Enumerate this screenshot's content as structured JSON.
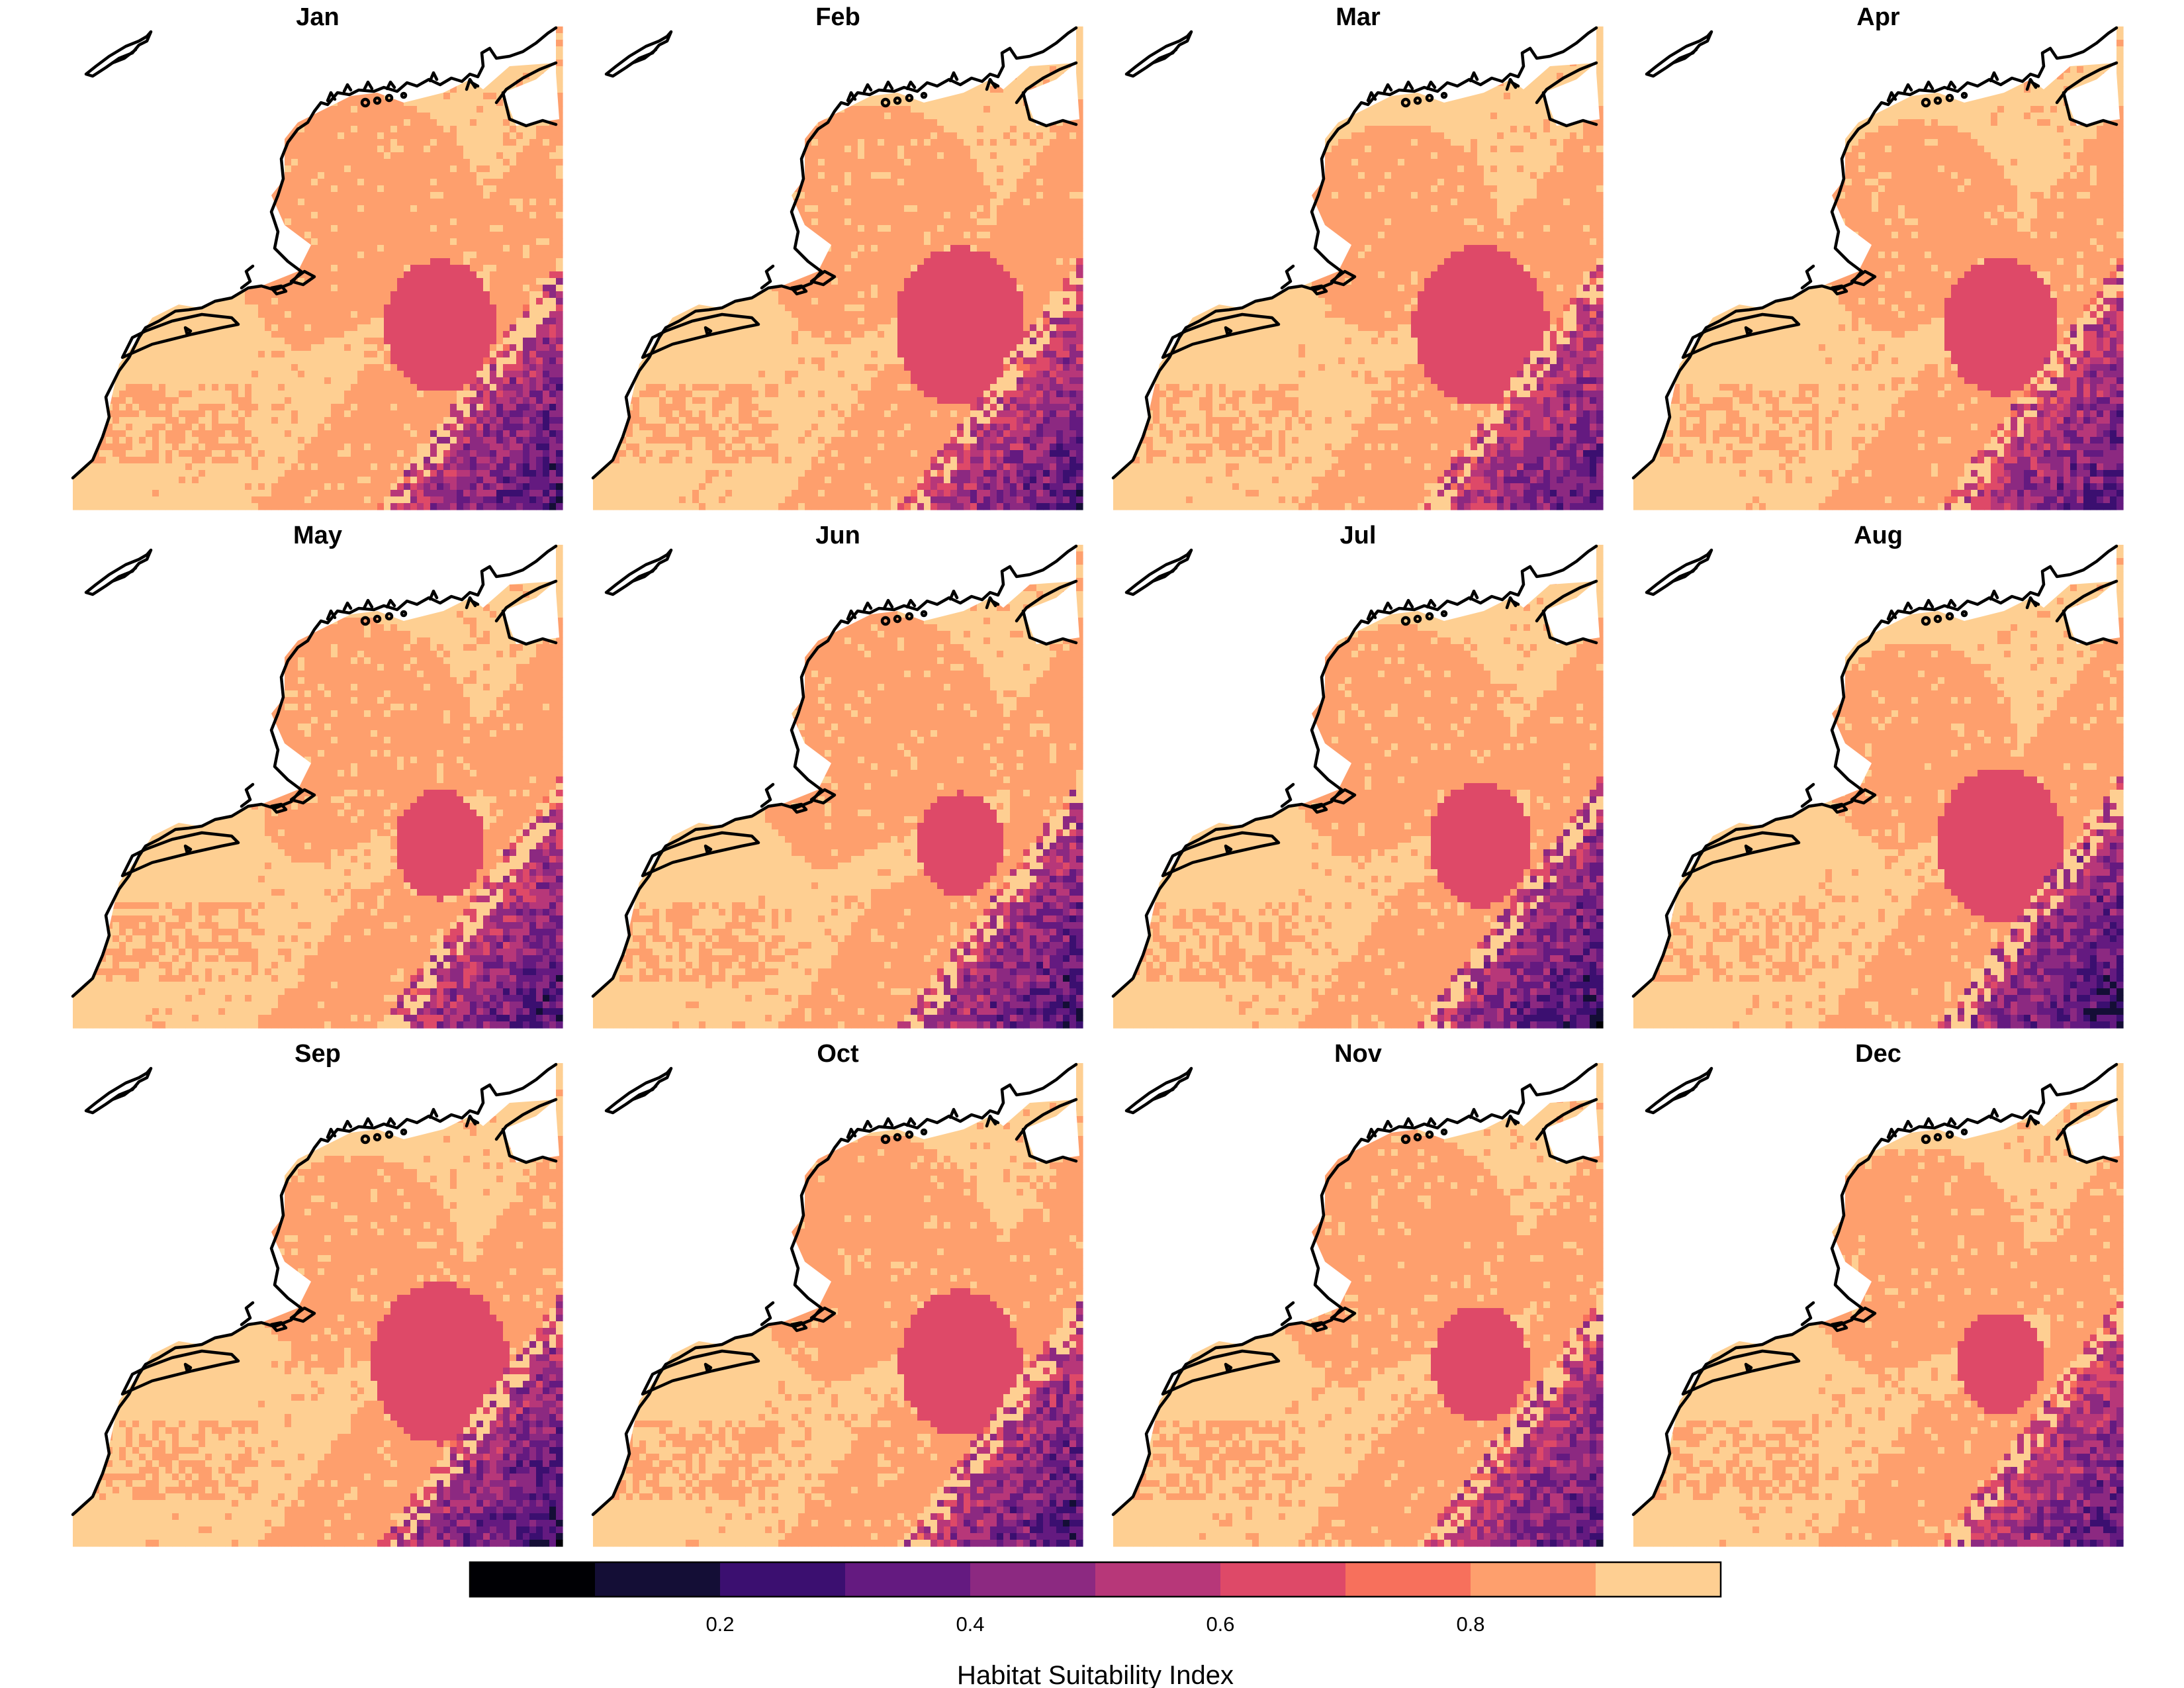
{
  "figure": {
    "panels": [
      {
        "title": "Jan"
      },
      {
        "title": "Feb"
      },
      {
        "title": "Mar"
      },
      {
        "title": "Apr"
      },
      {
        "title": "May"
      },
      {
        "title": "Jun"
      },
      {
        "title": "Jul"
      },
      {
        "title": "Aug"
      },
      {
        "title": "Sep"
      },
      {
        "title": "Oct"
      },
      {
        "title": "Nov"
      },
      {
        "title": "Dec"
      }
    ],
    "colorbar": {
      "title": "Habitat Suitability Index",
      "breaks": [
        0.0,
        0.1,
        0.2,
        0.3,
        0.4,
        0.5,
        0.6,
        0.7,
        0.8,
        0.9,
        1.0
      ],
      "colors": [
        "#000004",
        "#140e36",
        "#3b0f70",
        "#641a80",
        "#8c2981",
        "#b73779",
        "#de4968",
        "#f7705c",
        "#fe9f6d",
        "#fecf92",
        "#fcfdbf"
      ],
      "tick_labels": [
        "0.2",
        "0.4",
        "0.6",
        "0.8"
      ],
      "tick_values": [
        0.2,
        0.4,
        0.6,
        0.8
      ]
    },
    "colors": {
      "high_suitability": "#fcfdbf",
      "mid_suitability": "#fe9f6d",
      "low_suitability": "#3b0f70",
      "coastline": "#000000"
    }
  }
}
